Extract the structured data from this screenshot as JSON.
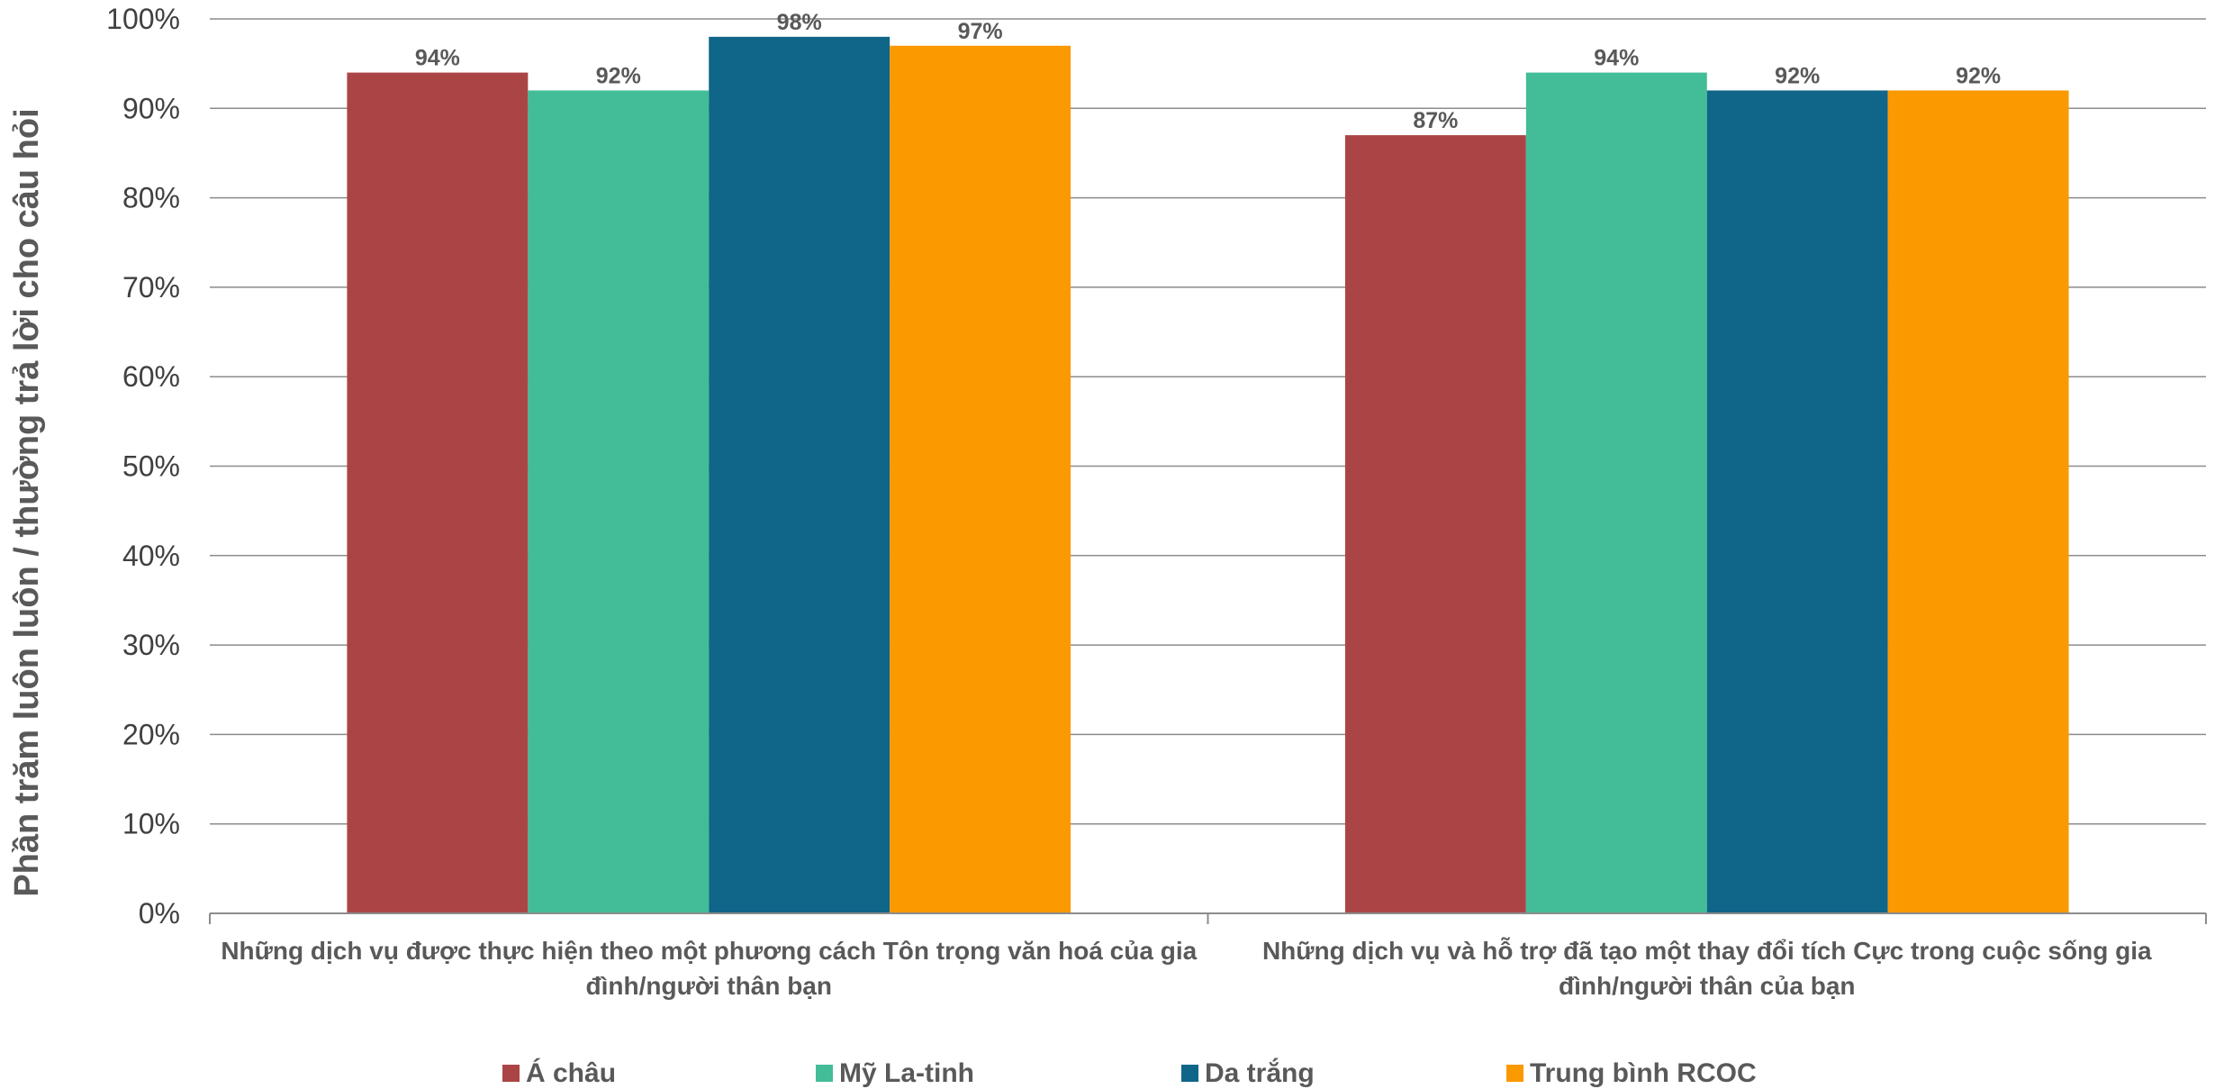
{
  "chart_data": {
    "type": "bar",
    "ylabel": "Phần trăm luôn luôn / thường trả lời cho câu hỏi",
    "ylim": [
      0,
      100
    ],
    "yticks": [
      "0%",
      "10%",
      "20%",
      "30%",
      "40%",
      "50%",
      "60%",
      "70%",
      "80%",
      "90%",
      "100%"
    ],
    "grid": true,
    "legend_position": "bottom",
    "categories": [
      [
        "Những dịch vụ được thực hiện theo một phương cách Tôn trọng văn hoá của gia",
        "đình/người thân bạn"
      ],
      [
        "Những dịch vụ và hỗ trợ đã tạo một thay đổi tích Cực trong cuộc sống gia",
        "đình/người thân của bạn"
      ]
    ],
    "series": [
      {
        "name": "Á châu",
        "color": "#AB4545",
        "values": [
          94,
          87
        ],
        "labels": [
          "94%",
          "87%"
        ]
      },
      {
        "name": "Mỹ La-tinh",
        "color": "#43BC98",
        "values": [
          92,
          94
        ],
        "labels": [
          "92%",
          "94%"
        ]
      },
      {
        "name": "Da trắng",
        "color": "#0F6688",
        "values": [
          98,
          92
        ],
        "labels": [
          "98%",
          "92%"
        ]
      },
      {
        "name": "Trung bình RCOC",
        "color": "#FB9900",
        "values": [
          97,
          92
        ],
        "labels": [
          "97%",
          "92%"
        ]
      }
    ]
  }
}
